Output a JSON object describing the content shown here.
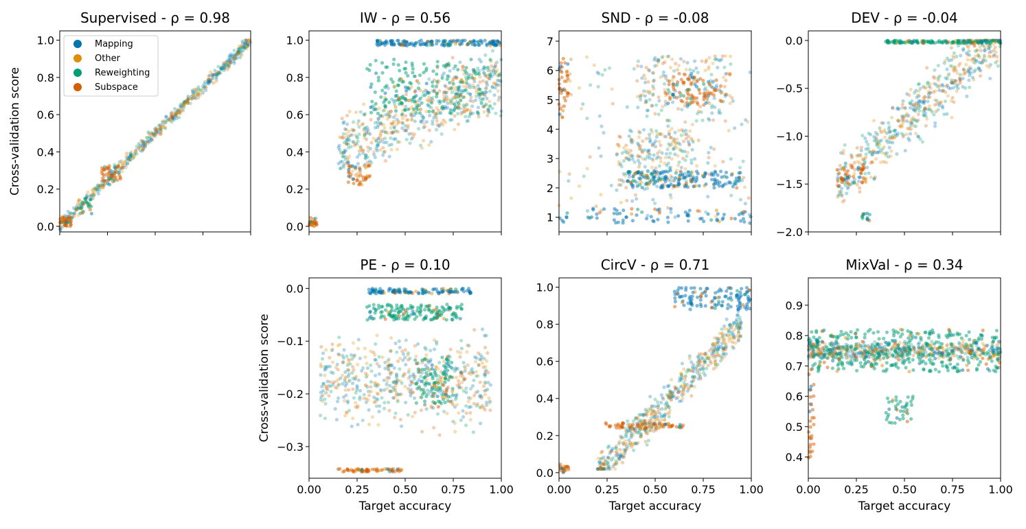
{
  "figure": {
    "shared_xlabel": "Target accuracy",
    "shared_ylabel": "Cross-validation score",
    "legend": [
      {
        "name": "Mapping",
        "color": "#0173b2"
      },
      {
        "name": "Other",
        "color": "#de8f05"
      },
      {
        "name": "Reweighting",
        "color": "#029e73"
      },
      {
        "name": "Subspace",
        "color": "#d55e00"
      }
    ]
  },
  "chart_data": [
    {
      "id": "supervised",
      "type": "scatter",
      "title": "Supervised - ρ = 0.98",
      "xlabel": "",
      "ylabel": "Cross-validation score",
      "xlim": [
        0,
        1
      ],
      "ylim": [
        -0.03,
        1.05
      ],
      "xticks": [
        0,
        0.25,
        0.5,
        0.75,
        1
      ],
      "xticklabels": [],
      "yticks": [
        0,
        0.2,
        0.4,
        0.6,
        0.8,
        1
      ],
      "yticklabels": [
        "0.0",
        "0.2",
        "0.4",
        "0.6",
        "0.8",
        "1.0"
      ],
      "legend_position": "upper-left",
      "pattern": "diagonal",
      "clusters": [
        {
          "series": "Subspace",
          "x": [
            0.0,
            0.06
          ],
          "y": [
            0.0,
            0.05
          ],
          "n": 30
        },
        {
          "series": "Subspace",
          "x": [
            0.22,
            0.32
          ],
          "y": [
            0.24,
            0.33
          ],
          "n": 40
        },
        {
          "series": "Reweighting",
          "x": [
            0.1,
            0.18
          ],
          "y": [
            0.06,
            0.15
          ],
          "n": 20
        }
      ]
    },
    {
      "id": "iw",
      "type": "scatter",
      "title": "IW - ρ = 0.56",
      "xlabel": "",
      "ylabel": "",
      "xlim": [
        0,
        1
      ],
      "ylim": [
        -0.03,
        1.05
      ],
      "xticks": [
        0,
        0.25,
        0.5,
        0.75,
        1
      ],
      "xticklabels": [],
      "yticks": [
        0,
        0.2,
        0.4,
        0.6,
        0.8,
        1
      ],
      "yticklabels": [
        "0.0",
        "0.2",
        "0.4",
        "0.6",
        "0.8",
        "1.0"
      ],
      "pattern": "iw",
      "clusters": [
        {
          "series": "Mapping",
          "x": [
            0.35,
            1.0
          ],
          "y": [
            0.97,
            1.0
          ],
          "n": 160
        },
        {
          "series": "Reweighting",
          "x": [
            0.3,
            0.95
          ],
          "y": [
            0.6,
            0.9
          ],
          "n": 200
        },
        {
          "series": "Subspace",
          "x": [
            0.2,
            0.32
          ],
          "y": [
            0.22,
            0.33
          ],
          "n": 40
        },
        {
          "series": "Subspace",
          "x": [
            0.0,
            0.04
          ],
          "y": [
            0.0,
            0.05
          ],
          "n": 25
        }
      ]
    },
    {
      "id": "snd",
      "type": "scatter",
      "title": "SND - ρ = -0.08",
      "xlabel": "",
      "ylabel": "",
      "xlim": [
        0,
        1
      ],
      "ylim": [
        0.5,
        7.35
      ],
      "xticks": [
        0,
        0.25,
        0.5,
        0.75,
        1
      ],
      "xticklabels": [],
      "yticks": [
        1,
        2,
        3,
        4,
        5,
        6,
        7
      ],
      "yticklabels": [
        "1",
        "2",
        "3",
        "4",
        "5",
        "6",
        "7"
      ],
      "pattern": "snd",
      "clusters": [
        {
          "series": "Mapping",
          "x": [
            0.35,
            0.95
          ],
          "y": [
            2.0,
            2.6
          ],
          "n": 160
        },
        {
          "series": "Subspace",
          "x": [
            0.55,
            0.85
          ],
          "y": [
            4.8,
            5.9
          ],
          "n": 80
        },
        {
          "series": "Subspace",
          "x": [
            0.0,
            0.05
          ],
          "y": [
            4.4,
            6.5
          ],
          "n": 40
        },
        {
          "series": "Mapping",
          "x": [
            0.0,
            1.0
          ],
          "y": [
            0.8,
            1.3
          ],
          "n": 80
        }
      ]
    },
    {
      "id": "dev",
      "type": "scatter",
      "title": "DEV - ρ = -0.04",
      "xlabel": "",
      "ylabel": "",
      "xlim": [
        0,
        1
      ],
      "ylim": [
        -2.0,
        0.1
      ],
      "xticks": [
        0,
        0.25,
        0.5,
        0.75,
        1
      ],
      "xticklabels": [],
      "yticks": [
        -2.0,
        -1.5,
        -1.0,
        -0.5,
        0.0
      ],
      "yticklabels": [
        "−2.0",
        "−1.5",
        "−1.0",
        "−0.5",
        "0.0"
      ],
      "pattern": "dev",
      "clusters": [
        {
          "series": "Reweighting",
          "x": [
            0.4,
            1.0
          ],
          "y": [
            -0.03,
            0.0
          ],
          "n": 160
        },
        {
          "series": "Subspace",
          "x": [
            0.15,
            0.3
          ],
          "y": [
            -1.5,
            -1.3
          ],
          "n": 40
        },
        {
          "series": "Reweighting",
          "x": [
            0.28,
            0.32
          ],
          "y": [
            -1.9,
            -1.8
          ],
          "n": 12
        }
      ]
    },
    {
      "id": "pe",
      "type": "scatter",
      "title": "PE - ρ = 0.10",
      "xlabel": "Target accuracy",
      "ylabel": "Cross-validation score",
      "xlim": [
        0,
        1
      ],
      "ylim": [
        -0.36,
        0.02
      ],
      "xticks": [
        0,
        0.25,
        0.5,
        0.75,
        1
      ],
      "xticklabels": [
        "0.00",
        "0.25",
        "0.50",
        "0.75",
        "1.00"
      ],
      "yticks": [
        -0.3,
        -0.2,
        -0.1,
        0.0
      ],
      "yticklabels": [
        "−0.3",
        "−0.2",
        "−0.1",
        "0.0"
      ],
      "pattern": "pe",
      "clusters": [
        {
          "series": "Reweighting",
          "x": [
            0.3,
            0.8
          ],
          "y": [
            -0.06,
            -0.03
          ],
          "n": 160
        },
        {
          "series": "Mapping",
          "x": [
            0.3,
            0.85
          ],
          "y": [
            -0.01,
            0.0
          ],
          "n": 120
        },
        {
          "series": "Subspace",
          "x": [
            0.15,
            0.5
          ],
          "y": [
            -0.348,
            -0.342
          ],
          "n": 60
        },
        {
          "series": "Reweighting",
          "x": [
            0.55,
            0.75
          ],
          "y": [
            -0.22,
            -0.13
          ],
          "n": 100
        }
      ]
    },
    {
      "id": "circv",
      "type": "scatter",
      "title": "CircV - ρ = 0.71",
      "xlabel": "Target accuracy",
      "ylabel": "",
      "xlim": [
        0,
        1
      ],
      "ylim": [
        -0.03,
        1.05
      ],
      "xticks": [
        0,
        0.25,
        0.5,
        0.75,
        1
      ],
      "xticklabels": [
        "0.00",
        "0.25",
        "0.50",
        "0.75",
        "1.00"
      ],
      "yticks": [
        0,
        0.2,
        0.4,
        0.6,
        0.8,
        1
      ],
      "yticklabels": [
        "0.0",
        "0.2",
        "0.4",
        "0.6",
        "0.8",
        "1.0"
      ],
      "pattern": "circv",
      "clusters": [
        {
          "series": "Subspace",
          "x": [
            0.2,
            0.65
          ],
          "y": [
            0.24,
            0.27
          ],
          "n": 60
        },
        {
          "series": "Mapping",
          "x": [
            0.6,
            1.0
          ],
          "y": [
            0.88,
            1.0
          ],
          "n": 120
        },
        {
          "series": "Subspace",
          "x": [
            0.0,
            0.05
          ],
          "y": [
            0.0,
            0.05
          ],
          "n": 20
        }
      ]
    },
    {
      "id": "mixval",
      "type": "scatter",
      "title": "MixVal - ρ = 0.34",
      "xlabel": "Target accuracy",
      "ylabel": "",
      "xlim": [
        0,
        1
      ],
      "ylim": [
        0.33,
        0.99
      ],
      "xticks": [
        0,
        0.25,
        0.5,
        0.75,
        1
      ],
      "xticklabels": [
        "0.00",
        "0.25",
        "0.50",
        "0.75",
        "1.00"
      ],
      "yticks": [
        0.4,
        0.5,
        0.6,
        0.7,
        0.8,
        0.9
      ],
      "yticklabels": [
        "0.4",
        "0.5",
        "0.6",
        "0.7",
        "0.8",
        "0.9"
      ],
      "pattern": "mixval",
      "clusters": [
        {
          "series": "Reweighting",
          "x": [
            0.0,
            1.0
          ],
          "y": [
            0.68,
            0.82
          ],
          "n": 400
        },
        {
          "series": "Reweighting",
          "x": [
            0.4,
            0.55
          ],
          "y": [
            0.51,
            0.6
          ],
          "n": 40
        },
        {
          "series": "Subspace",
          "x": [
            0.0,
            0.03
          ],
          "y": [
            0.38,
            0.7
          ],
          "n": 30
        }
      ]
    }
  ]
}
